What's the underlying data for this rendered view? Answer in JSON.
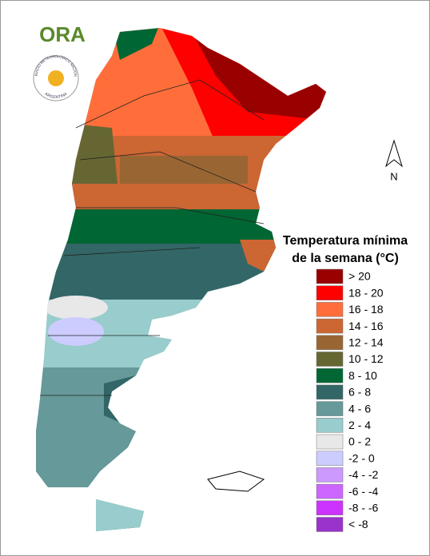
{
  "logo": {
    "text": "ORA",
    "seal_top": "SERVICIO METEOROLOGICO NACIONAL",
    "seal_bottom": "ARGENTINA"
  },
  "north_arrow": {
    "label": "N"
  },
  "legend": {
    "title_lines": [
      "Temperatura mínima",
      "de la semana (°C)"
    ],
    "items": [
      {
        "label": "> 20",
        "color": "#990000"
      },
      {
        "label": "18 - 20",
        "color": "#ff0000"
      },
      {
        "label": "16 - 18",
        "color": "#ff6e3a"
      },
      {
        "label": "14 - 16",
        "color": "#cc6633"
      },
      {
        "label": "12 - 14",
        "color": "#996633"
      },
      {
        "label": "10 - 12",
        "color": "#666633"
      },
      {
        "label": "8 - 10",
        "color": "#006633"
      },
      {
        "label": "6 - 8",
        "color": "#336666"
      },
      {
        "label": "4 - 6",
        "color": "#669999"
      },
      {
        "label": "2 - 4",
        "color": "#99cccc"
      },
      {
        "label": "0 - 2",
        "color": "#e8e8e8"
      },
      {
        "label": "-2 - 0",
        "color": "#ccccff"
      },
      {
        "label": "-4 - -2",
        "color": "#cc99ff"
      },
      {
        "label": "-6 - -4",
        "color": "#cc66ff"
      },
      {
        "label": "-8 - -6",
        "color": "#cc33ff"
      },
      {
        "label": "< -8",
        "color": "#9933cc"
      }
    ]
  }
}
